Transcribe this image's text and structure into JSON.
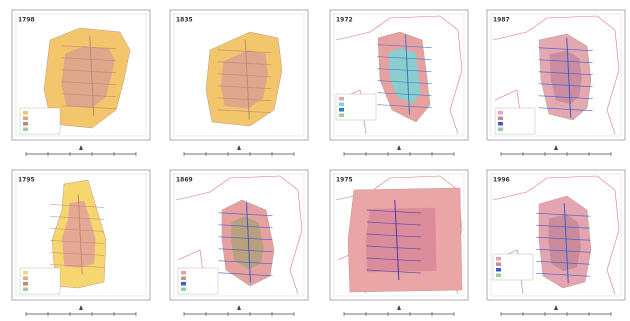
{
  "panels": [
    {
      "label": "1798"
    },
    {
      "label": "1835"
    },
    {
      "label": "1972"
    },
    {
      "label": "1987"
    },
    {
      "label": "1795"
    },
    {
      "label": "1869"
    },
    {
      "label": "1975"
    },
    {
      "label": "1996"
    }
  ]
}
